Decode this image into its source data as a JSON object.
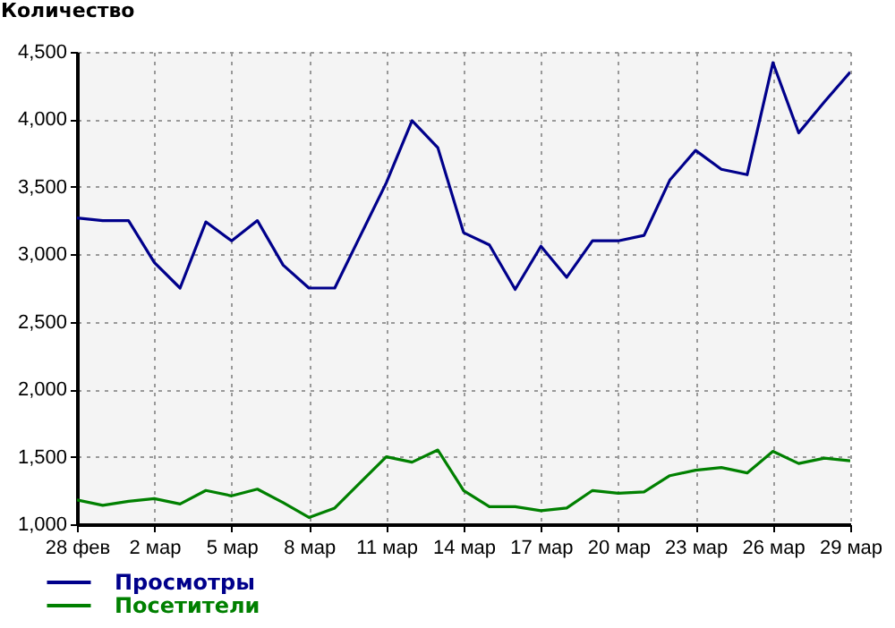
{
  "chart_data": {
    "type": "line",
    "ylabel": "Количество",
    "categories": [
      "28 фев",
      null,
      null,
      "2 мар",
      null,
      null,
      "5 мар",
      null,
      null,
      "8 мар",
      null,
      null,
      "11 мар",
      null,
      null,
      "14 мар",
      null,
      null,
      "17 мар",
      null,
      null,
      "20 мар",
      null,
      null,
      "23 мар",
      null,
      null,
      "26 мар",
      null,
      null,
      "29 мар"
    ],
    "series": [
      {
        "name": "Просмотры",
        "color": "#00008b",
        "values": [
          3270,
          3250,
          3250,
          2940,
          2750,
          3240,
          3100,
          3250,
          2920,
          2750,
          2750,
          3140,
          3530,
          3990,
          3790,
          3160,
          3070,
          2740,
          3060,
          2830,
          3100,
          3100,
          3140,
          3550,
          3770,
          3630,
          3590,
          4420,
          3900,
          4130,
          4350
        ]
      },
      {
        "name": "Посетители",
        "color": "#008000",
        "values": [
          1180,
          1140,
          1170,
          1190,
          1150,
          1250,
          1210,
          1260,
          1160,
          1050,
          1120,
          1310,
          1500,
          1460,
          1550,
          1250,
          1130,
          1130,
          1100,
          1120,
          1250,
          1230,
          1240,
          1360,
          1400,
          1420,
          1380,
          1540,
          1450,
          1490,
          1470
        ]
      }
    ],
    "ylim": [
      1000,
      4500
    ],
    "yticks": [
      {
        "value": 1000,
        "label": "1,000"
      },
      {
        "value": 1500,
        "label": "1,500"
      },
      {
        "value": 2000,
        "label": "2,000"
      },
      {
        "value": 2500,
        "label": "2,500"
      },
      {
        "value": 3000,
        "label": "3,000"
      },
      {
        "value": 3500,
        "label": "3,500"
      },
      {
        "value": 4000,
        "label": "4,000"
      },
      {
        "value": 4500,
        "label": "4,500"
      }
    ],
    "grid": true,
    "legend": "bottom left",
    "marker": "none",
    "line_style": "solid"
  }
}
